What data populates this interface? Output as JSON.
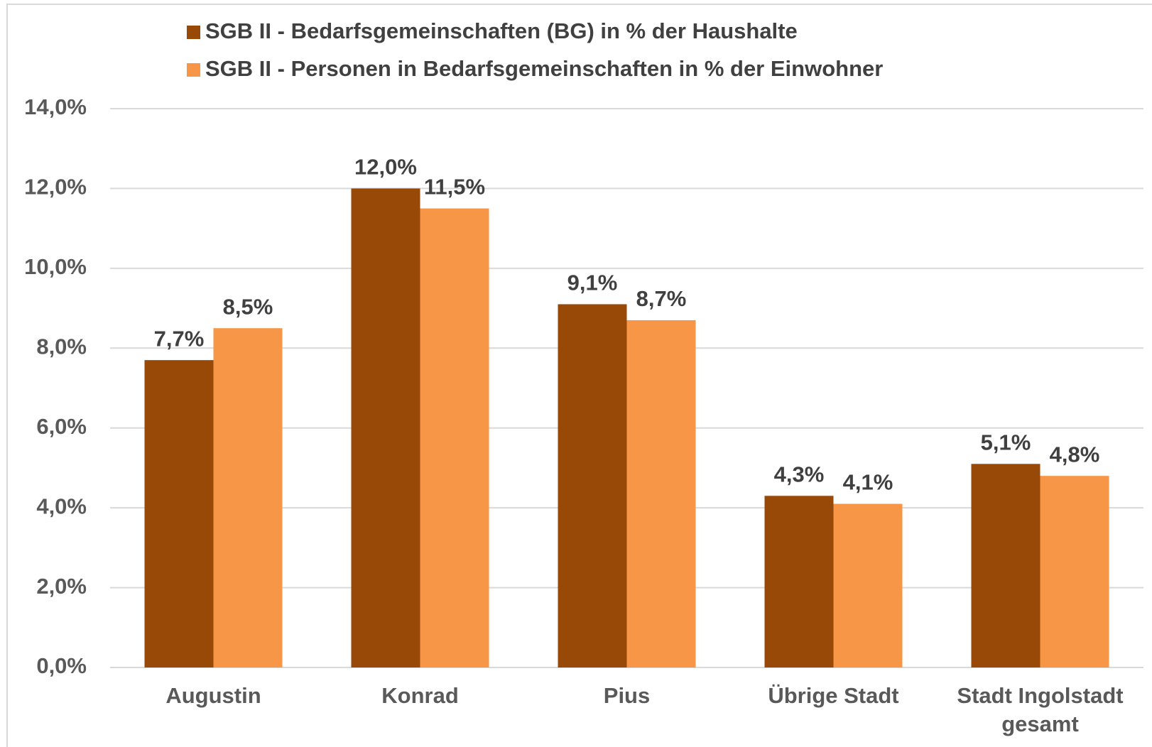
{
  "chart_data": {
    "type": "bar",
    "categories": [
      "Augustin",
      "Konrad",
      "Pius",
      "Übrige Stadt",
      "Stadt Ingolstadt gesamt"
    ],
    "series": [
      {
        "name": "SGB II - Bedarfsgemeinschaften (BG) in % der Haushalte",
        "color": "#984807",
        "values": [
          7.7,
          12.0,
          9.1,
          4.3,
          5.1
        ],
        "value_labels": [
          "7,7%",
          "12,0%",
          "9,1%",
          "4,3%",
          "5,1%"
        ]
      },
      {
        "name": "SGB II - Personen in Bedarfsgemeinschaften in % der Einwohner",
        "color": "#F79646",
        "values": [
          8.5,
          11.5,
          8.7,
          4.1,
          4.8
        ],
        "value_labels": [
          "8,5%",
          "11,5%",
          "8,7%",
          "4,1%",
          "4,8%"
        ]
      }
    ],
    "ylim": [
      0,
      14
    ],
    "yticks": [
      {
        "value": 0,
        "label": "0,0%"
      },
      {
        "value": 2,
        "label": "2,0%"
      },
      {
        "value": 4,
        "label": "4,0%"
      },
      {
        "value": 6,
        "label": "6,0%"
      },
      {
        "value": 8,
        "label": "8,0%"
      },
      {
        "value": 10,
        "label": "10,0%"
      },
      {
        "value": 12,
        "label": "12,0%"
      },
      {
        "value": 14,
        "label": "14,0%"
      }
    ],
    "grid": true,
    "legend": "top"
  }
}
